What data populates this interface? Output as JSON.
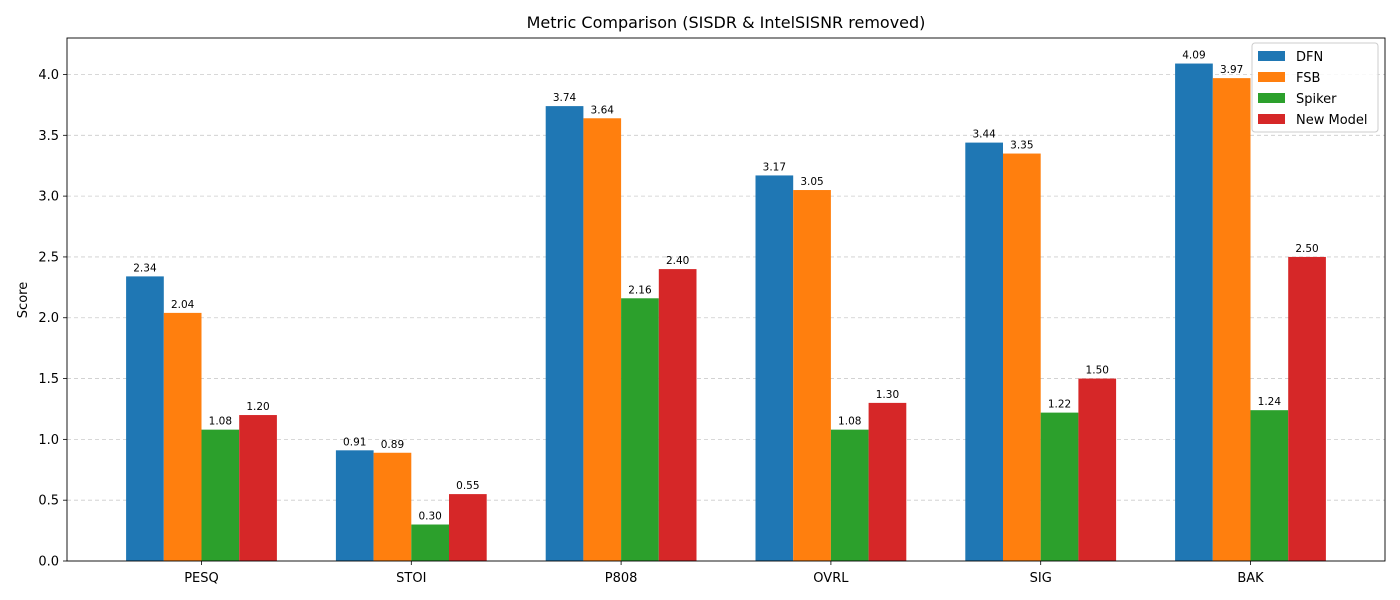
{
  "chart_data": {
    "type": "bar",
    "title": "Metric Comparison (SISDR & IntelSISNR removed)",
    "xlabel": "",
    "ylabel": "Score",
    "categories": [
      "PESQ",
      "STOI",
      "P808",
      "OVRL",
      "SIG",
      "BAK"
    ],
    "series": [
      {
        "name": "DFN",
        "color": "#1f77b4",
        "values": [
          2.34,
          0.91,
          3.74,
          3.17,
          3.44,
          4.09
        ]
      },
      {
        "name": "FSB",
        "color": "#ff7f0e",
        "values": [
          2.04,
          0.89,
          3.64,
          3.05,
          3.35,
          3.97
        ]
      },
      {
        "name": "Spiker",
        "color": "#2ca02c",
        "values": [
          1.08,
          0.3,
          2.16,
          1.08,
          1.22,
          1.24
        ]
      },
      {
        "name": "New Model",
        "color": "#d62728",
        "values": [
          1.2,
          0.55,
          2.4,
          1.3,
          1.5,
          2.5
        ]
      }
    ],
    "ylim": [
      0,
      4.3
    ],
    "yticks": [
      "0.0",
      "0.5",
      "1.0",
      "1.5",
      "2.0",
      "2.5",
      "3.0",
      "3.5",
      "4.0"
    ],
    "grid": "y dashed",
    "legend_position": "top-right",
    "data_labels_format": "2 decimals"
  }
}
